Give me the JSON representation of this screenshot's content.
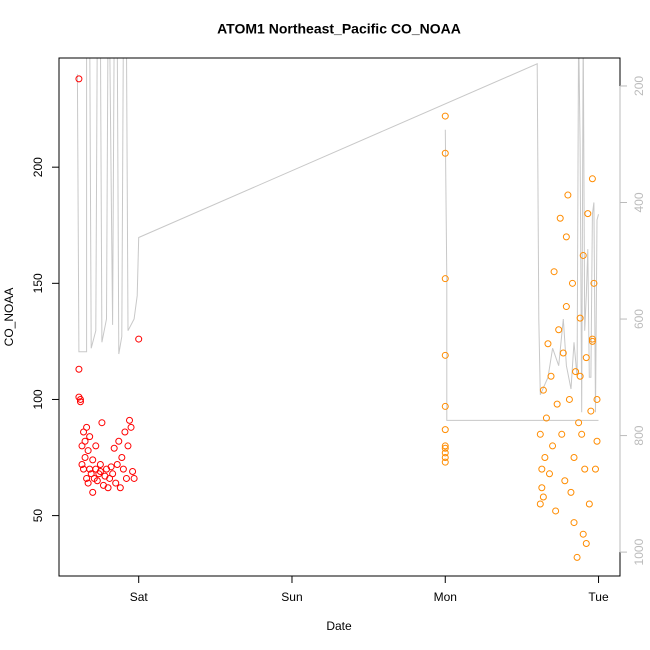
{
  "chart_data": {
    "type": "scatter",
    "title": "ATOM1 Northeast_Pacific CO_NOAA",
    "x_label": "Date",
    "y_label": "CO_NOAA",
    "xlim": [
      0.48,
      4.14
    ],
    "xticks": [
      {
        "value": 1,
        "label": "Sat"
      },
      {
        "value": 2,
        "label": "Sun"
      },
      {
        "value": 3,
        "label": "Mon"
      },
      {
        "value": 4,
        "label": "Tue"
      }
    ],
    "ylim": [
      24,
      247
    ],
    "yticks": [
      50,
      100,
      150,
      200
    ],
    "y2lim": [
      1041,
      152
    ],
    "y2ticks": [
      200,
      400,
      600,
      800,
      1000
    ],
    "series": [
      {
        "color": "#ff0000",
        "x": [
          0.61,
          0.61,
          0.61,
          0.62,
          0.62,
          0.63,
          0.63,
          0.64,
          0.64,
          0.65,
          0.65,
          0.66,
          0.66,
          0.67,
          0.67,
          0.68,
          0.68,
          0.69,
          0.7,
          0.7,
          0.71,
          0.72,
          0.72,
          0.73,
          0.74,
          0.75,
          0.75,
          0.76,
          0.77,
          0.78,
          0.79,
          0.8,
          0.81,
          0.82,
          0.83,
          0.84,
          0.85,
          0.86,
          0.87,
          0.88,
          0.89,
          0.9,
          0.91,
          0.92,
          0.93,
          0.94,
          0.95,
          0.96,
          0.97,
          1.0
        ],
        "values": [
          238,
          113,
          101,
          100,
          99,
          72,
          80,
          86,
          70,
          75,
          82,
          66,
          88,
          78,
          64,
          84,
          70,
          68,
          60,
          74,
          66,
          80,
          70,
          65,
          68,
          72,
          69,
          90,
          63,
          67,
          70,
          62,
          66,
          71,
          68,
          79,
          64,
          72,
          82,
          62,
          75,
          70,
          86,
          66,
          80,
          91,
          88,
          69,
          66,
          126
        ]
      },
      {
        "color": "#ff8c00",
        "x": [
          3.0,
          3.0,
          3.0,
          3.0,
          3.0,
          3.0,
          3.0,
          3.0,
          3.0,
          3.0,
          3.0,
          3.62,
          3.62,
          3.63,
          3.63,
          3.64,
          3.64,
          3.65,
          3.66,
          3.67,
          3.68,
          3.69,
          3.7,
          3.71,
          3.72,
          3.73,
          3.74,
          3.75,
          3.76,
          3.77,
          3.78,
          3.79,
          3.79,
          3.8,
          3.81,
          3.82,
          3.83,
          3.84,
          3.85,
          3.86,
          3.87,
          3.88,
          3.89,
          3.9,
          3.9,
          3.91,
          3.92,
          3.93,
          3.94,
          3.95,
          3.96,
          3.96,
          3.97,
          3.98,
          3.99,
          3.99,
          3.96,
          3.92,
          3.88,
          3.84
        ],
        "values": [
          222,
          206,
          152,
          119,
          97,
          87,
          80,
          79,
          77,
          75,
          73,
          85,
          55,
          70,
          62,
          104,
          58,
          75,
          92,
          124,
          68,
          110,
          80,
          155,
          52,
          98,
          130,
          178,
          85,
          120,
          65,
          170,
          140,
          188,
          100,
          60,
          150,
          75,
          112,
          32,
          90,
          135,
          85,
          42,
          162,
          70,
          118,
          180,
          55,
          95,
          126,
          195,
          150,
          70,
          100,
          82,
          125,
          38,
          110,
          47
        ]
      },
      {
        "color": "#c8c8c8",
        "type": "line",
        "axis": "y2",
        "x": [
          0.6,
          0.61,
          0.66,
          0.66,
          0.68,
          0.69,
          0.72,
          0.73,
          0.75,
          0.76,
          0.79,
          0.8,
          0.81,
          0.83,
          0.84,
          0.86,
          0.87,
          0.89,
          0.9,
          0.92,
          0.93,
          0.97,
          0.99,
          1.0,
          3.6,
          3.61,
          3.62,
          3.67,
          3.7,
          3.74,
          3.77,
          3.79,
          3.82,
          3.84,
          3.86,
          3.87,
          3.88,
          3.89,
          3.9,
          3.91,
          3.92,
          3.93,
          3.94,
          3.95,
          3.96,
          3.97,
          3.98,
          3.99,
          4.0,
          null,
          3.0,
          3.01,
          3.01,
          4.0
        ],
        "values": [
          180,
          656,
          656,
          100,
          100,
          650,
          620,
          100,
          100,
          640,
          600,
          100,
          100,
          610,
          100,
          100,
          660,
          630,
          100,
          100,
          620,
          600,
          560,
          460,
          162,
          600,
          730,
          700,
          650,
          680,
          600,
          680,
          720,
          640,
          700,
          100,
          300,
          760,
          100,
          620,
          560,
          480,
          700,
          700,
          420,
          400,
          760,
          430,
          420,
          null,
          275,
          530,
          774,
          774
        ]
      }
    ]
  }
}
